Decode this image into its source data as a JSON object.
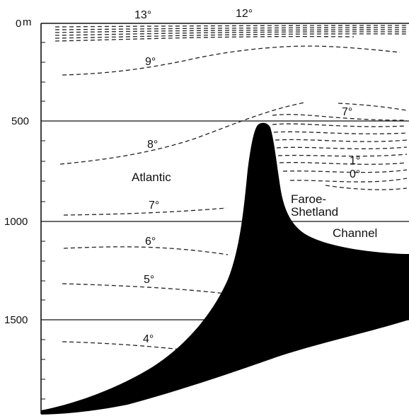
{
  "depth_axis": {
    "unit_label": "m",
    "ticks": [
      "0",
      "500",
      "1000",
      "1500"
    ]
  },
  "isotherms": {
    "surface_left": "13°",
    "surface_right": "12°",
    "t9": "9°",
    "t8": "8°",
    "t7_atlantic": "7°",
    "t6": "6°",
    "t5": "5°",
    "t4": "4°",
    "t7_channel": "7°",
    "t1": "1°",
    "t0": "0°"
  },
  "regions": {
    "atlantic": "Atlantic",
    "channel_line1": "Faroe-",
    "channel_line2": "Shetland",
    "channel_line3": "Channel"
  },
  "colors": {
    "ridge_fill": "#000000",
    "line": "#222222",
    "background": "#ffffff"
  }
}
